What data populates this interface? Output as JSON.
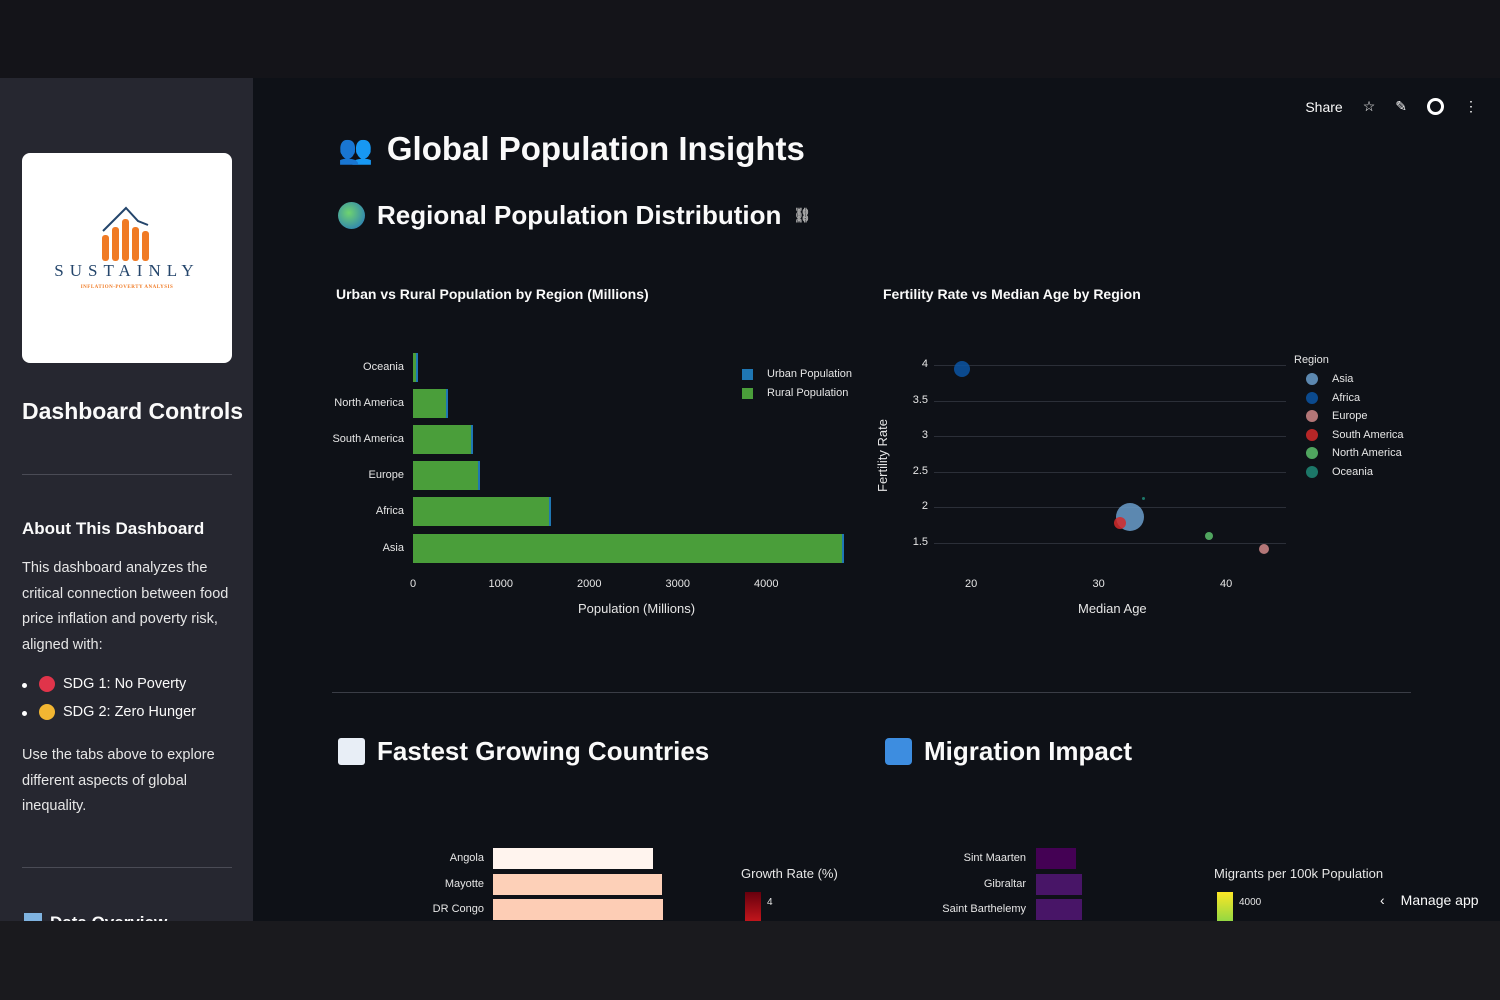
{
  "sidebar": {
    "logo": {
      "name": "SUSTAINLY",
      "tagline": "INFLATION-POVERTY ANALYSIS"
    },
    "heading": "Dashboard Controls",
    "about_title": "About This Dashboard",
    "about_text": "This dashboard analyzes the critical connection between food price inflation and poverty risk, aligned with:",
    "sdgs": [
      {
        "label": "SDG 1: No Poverty",
        "color": "#e0344a"
      },
      {
        "label": "SDG 2: Zero Hunger",
        "color": "#f2b632"
      }
    ],
    "tabs_text": "Use the tabs above to explore different aspects of global inequality.",
    "next_section": "Data Overview"
  },
  "toolbar": {
    "share": "Share"
  },
  "main": {
    "title": "Global Population Insights",
    "section1": "Regional Population Distribution",
    "section2": "Fastest Growing Countries",
    "section3": "Migration Impact",
    "manage_app": "Manage app"
  },
  "chart_data": [
    {
      "type": "bar",
      "orientation": "horizontal",
      "stacked": true,
      "title": "Urban vs Rural Population by Region (Millions)",
      "categories": [
        "Oceania",
        "North America",
        "South America",
        "Europe",
        "Africa",
        "Asia"
      ],
      "series": [
        {
          "name": "Urban Population",
          "color": "#1f77b4",
          "values": [
            16,
            6,
            6,
            12,
            24,
            24
          ]
        },
        {
          "name": "Rural Population",
          "color": "#4a9e3a",
          "values": [
            31,
            376,
            659,
            737,
            1537,
            4843
          ]
        }
      ],
      "xlabel": "Population (Millions)",
      "xticks": [
        0,
        1000,
        2000,
        3000,
        4000
      ],
      "xlim": [
        0,
        5000
      ],
      "legend": "top-right"
    },
    {
      "type": "scatter",
      "title": "Fertility Rate vs Median Age by Region",
      "xlabel": "Median Age",
      "ylabel": "Fertility Rate",
      "xticks": [
        20,
        30,
        40
      ],
      "yticks": [
        1.5,
        2,
        2.5,
        3,
        3.5,
        4
      ],
      "legend_title": "Region",
      "legend": "right",
      "grid": true,
      "points": [
        {
          "name": "Asia",
          "x": 32.5,
          "y": 1.87,
          "size": 14,
          "color": "#6a9ecb"
        },
        {
          "name": "Africa",
          "x": 19.3,
          "y": 3.95,
          "size": 8,
          "color": "#0b55a3"
        },
        {
          "name": "Europe",
          "x": 43,
          "y": 1.42,
          "size": 5,
          "color": "#d08888"
        },
        {
          "name": "South America",
          "x": 31.7,
          "y": 1.78,
          "size": 6,
          "color": "#d42a2a"
        },
        {
          "name": "North America",
          "x": 38.7,
          "y": 1.6,
          "size": 4,
          "color": "#5cbf6c"
        },
        {
          "name": "Oceania",
          "x": 33.5,
          "y": 2.13,
          "size": 1.5,
          "color": "#1e8a77"
        }
      ]
    },
    {
      "type": "bar",
      "orientation": "horizontal",
      "categories": [
        "Angola",
        "Mayotte",
        "DR Congo"
      ],
      "colorbar_title": "Growth Rate (%)",
      "colorbar_tick": "4",
      "colors": [
        "#fff4ee",
        "#fdd0b8",
        "#fdcdb5"
      ]
    },
    {
      "type": "bar",
      "orientation": "horizontal",
      "categories": [
        "Sint Maarten",
        "Gibraltar",
        "Saint Barthelemy"
      ],
      "colorbar_title": "Migrants per 100k Population",
      "colorbar_tick": "4000",
      "colors": [
        "#440154",
        "#481567",
        "#481567"
      ]
    }
  ]
}
